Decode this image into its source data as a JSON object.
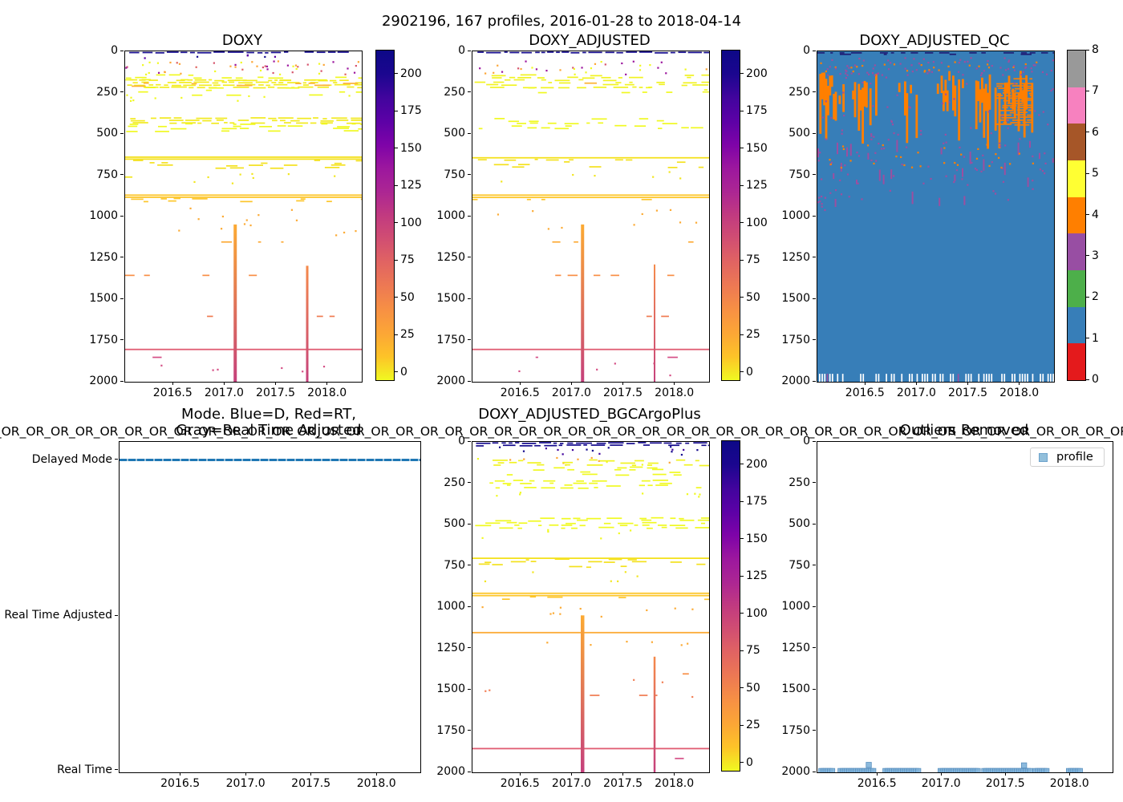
{
  "figure": {
    "suptitle": "2902196, 167 profiles, 2016-01-28 to 2018-04-14"
  },
  "axes": {
    "x_tick_labels": [
      "2016.5",
      "2017.0",
      "2017.5",
      "2018.0"
    ],
    "x_tick_values": [
      2016.5,
      2017.0,
      2017.5,
      2018.0
    ],
    "x_range": [
      2016.03,
      2018.33
    ],
    "depth_tick_labels": [
      "0",
      "250",
      "500",
      "750",
      "1000",
      "1250",
      "1500",
      "1750",
      "2000"
    ],
    "depth_tick_values": [
      0,
      250,
      500,
      750,
      1000,
      1250,
      1500,
      1750,
      2000
    ],
    "depth_range": [
      0,
      2000
    ],
    "y_axis_inverted": true
  },
  "colorbars": {
    "plasma_ticks": [
      "0",
      "25",
      "50",
      "75",
      "100",
      "125",
      "150",
      "175",
      "200"
    ],
    "plasma_tick_values": [
      0,
      25,
      50,
      75,
      100,
      125,
      150,
      175,
      200
    ],
    "plasma_range": [
      -5,
      216
    ],
    "plasma_gradient_bottom_to_top": [
      "#f0f921",
      "#fdc328",
      "#fca636",
      "#f79044",
      "#ed7953",
      "#e16462",
      "#d14e72",
      "#c13a80",
      "#ac2693",
      "#9c179e",
      "#7e03a8",
      "#5c01a6",
      "#41049d",
      "#1b068f",
      "#0d0887"
    ],
    "qc_ticks": [
      "0",
      "1",
      "2",
      "3",
      "4",
      "5",
      "6",
      "7",
      "8"
    ],
    "qc_palette_bottom_to_top": [
      "#e41a1c",
      "#377eb8",
      "#4daf4a",
      "#984ea3",
      "#ff7f00",
      "#ffff33",
      "#a65628",
      "#f781bf",
      "#999999"
    ]
  },
  "colors": {
    "mode_line": "#1f77b4",
    "profile_marker_fill": "#7fb2d9",
    "profile_marker_edge": "#5a90bf",
    "qc_background": "#377eb8",
    "qc_flag4": "#ff7f00",
    "qc_flag3": "#9c4fa0",
    "heat_top_band": "#140a8d",
    "heat_deep_line": "#e05c72"
  },
  "chart_data": [
    {
      "id": "doxy",
      "type": "heatmap",
      "title": "DOXY",
      "colormap": "plasma_r",
      "x_range": [
        2016.03,
        2018.33
      ],
      "depth_range": [
        0,
        2000
      ],
      "value_ticks": [
        0,
        25,
        50,
        75,
        100,
        125,
        150,
        175,
        200
      ],
      "features": [
        {
          "k": "band",
          "d": [
            0,
            13
          ],
          "c": "#140a8d",
          "den": 0.93
        },
        {
          "k": "speckle",
          "d": [
            18,
            42
          ],
          "cs": [
            "#140a8d",
            "#5601a4"
          ],
          "n": 6
        },
        {
          "k": "speckle",
          "d": [
            55,
            135
          ],
          "cs": [
            "#fca636",
            "#e0635f",
            "#9c179e",
            "#f0f921",
            "#d6556d"
          ],
          "n": 50
        },
        {
          "k": "band",
          "d": [
            138,
            168
          ],
          "c": "#f0f921",
          "den": 0.42
        },
        {
          "k": "band",
          "d": [
            168,
            212
          ],
          "c": "#f3ed20",
          "den": 0.88
        },
        {
          "k": "band",
          "d": [
            172,
            205
          ],
          "c": "#fcb130",
          "den": 0.16
        },
        {
          "k": "band",
          "d": [
            212,
            258
          ],
          "c": "#f0f921",
          "den": 0.28
        },
        {
          "k": "speckle",
          "d": [
            258,
            300
          ],
          "cs": [
            "#f0f921"
          ],
          "n": 10
        },
        {
          "k": "band",
          "d": [
            398,
            432
          ],
          "c": "#f2ea1f",
          "den": 0.8
        },
        {
          "k": "band",
          "d": [
            432,
            480
          ],
          "c": "#f0f921",
          "den": 0.42
        },
        {
          "k": "line",
          "d": 636,
          "c": "#f4e11e"
        },
        {
          "k": "line",
          "d": 648,
          "c": "#f4e11e"
        },
        {
          "k": "band",
          "d": [
            655,
            702
          ],
          "c": "#f4e11e",
          "den": 0.26
        },
        {
          "k": "dashrow",
          "d": 757,
          "c": "#f2e61f",
          "den": 0.07
        },
        {
          "k": "speckle",
          "d": [
            720,
            800
          ],
          "cs": [
            "#f2e61f"
          ],
          "n": 8
        },
        {
          "k": "line",
          "d": 866,
          "c": "#fdc62b"
        },
        {
          "k": "line",
          "d": 879,
          "c": "#fdc62b"
        },
        {
          "k": "band",
          "d": [
            886,
            912
          ],
          "c": "#fdc62b",
          "den": 0.3
        },
        {
          "k": "speckle",
          "d": [
            940,
            1110
          ],
          "cs": [
            "#fcab35"
          ],
          "n": 14
        },
        {
          "k": "dashrow",
          "d": 1150,
          "c": "#fcab35",
          "den": 0.17
        },
        {
          "k": "dashrow",
          "d": 1352,
          "c": "#f88f47",
          "den": 0.32
        },
        {
          "k": "dashrow",
          "d": 1600,
          "c": "#f07b52",
          "den": 0.15
        },
        {
          "k": "line",
          "d": 1800,
          "c": "#e05c72"
        },
        {
          "k": "dashrow",
          "d": 1848,
          "c": "#d55086",
          "den": 0.1
        },
        {
          "k": "speckle",
          "d": [
            1880,
            1935
          ],
          "cs": [
            "#d55086"
          ],
          "n": 6
        },
        {
          "k": "vspike",
          "x": 2017.1,
          "d": [
            1048,
            2000
          ],
          "w": 4,
          "c1": "#fcaa33",
          "c2": "#c5407c"
        },
        {
          "k": "vspike",
          "x": 2017.8,
          "d": [
            1298,
            2000
          ],
          "w": 3,
          "c1": "#f58a4a",
          "c2": "#c5407c"
        }
      ]
    },
    {
      "id": "doxy_adjusted",
      "type": "heatmap",
      "title": "DOXY_ADJUSTED",
      "colormap": "plasma_r",
      "x_range": [
        2016.03,
        2018.33
      ],
      "depth_range": [
        0,
        2000
      ],
      "value_ticks": [
        0,
        25,
        50,
        75,
        100,
        125,
        150,
        175,
        200
      ],
      "features": [
        {
          "k": "band",
          "d": [
            0,
            13
          ],
          "c": "#140a8d",
          "den": 0.9
        },
        {
          "k": "speckle",
          "d": [
            55,
            135
          ],
          "cs": [
            "#fca636",
            "#9c179e",
            "#f0f921",
            "#d6556d"
          ],
          "n": 32
        },
        {
          "k": "band",
          "d": [
            138,
            212
          ],
          "c": "#f1f321",
          "den": 0.5,
          "xr": [
            2016.03,
            2017.9
          ]
        },
        {
          "k": "band",
          "d": [
            138,
            212
          ],
          "c": "#f1f321",
          "den": 0.5,
          "xr": [
            2018.05,
            2018.33
          ]
        },
        {
          "k": "band",
          "d": [
            170,
            205
          ],
          "c": "#fcb130",
          "den": 0.1,
          "xr": [
            2016.25,
            2017.6
          ]
        },
        {
          "k": "band",
          "d": [
            212,
            262
          ],
          "c": "#f0f921",
          "den": 0.2
        },
        {
          "k": "band",
          "d": [
            400,
            470
          ],
          "c": "#f0f921",
          "den": 0.38
        },
        {
          "k": "line",
          "d": 640,
          "c": "#f4e11e"
        },
        {
          "k": "band",
          "d": [
            650,
            695
          ],
          "c": "#f4e11e",
          "den": 0.24
        },
        {
          "k": "speckle",
          "d": [
            720,
            800
          ],
          "cs": [
            "#f2e61f"
          ],
          "n": 6
        },
        {
          "k": "line",
          "d": 866,
          "c": "#fdc62b"
        },
        {
          "k": "line",
          "d": 880,
          "c": "#fdc62b"
        },
        {
          "k": "dashrow",
          "d": 893,
          "c": "#fdc62b",
          "den": 0.22
        },
        {
          "k": "speckle",
          "d": [
            940,
            1110
          ],
          "cs": [
            "#fcab35"
          ],
          "n": 10
        },
        {
          "k": "dashrow",
          "d": 1150,
          "c": "#fcab35",
          "den": 0.12
        },
        {
          "k": "dashrow",
          "d": 1352,
          "c": "#f88f47",
          "den": 0.26
        },
        {
          "k": "dashrow",
          "d": 1600,
          "c": "#f07b52",
          "den": 0.12
        },
        {
          "k": "line",
          "d": 1800,
          "c": "#e05c72"
        },
        {
          "k": "dashrow",
          "d": 1848,
          "c": "#d55086",
          "den": 0.08
        },
        {
          "k": "speckle",
          "d": [
            1880,
            1960
          ],
          "cs": [
            "#d55086"
          ],
          "n": 5
        },
        {
          "k": "vspike",
          "x": 2017.1,
          "d": [
            1048,
            2000
          ],
          "w": 4,
          "c1": "#fcaa33",
          "c2": "#c5407c"
        },
        {
          "k": "vspike",
          "x": 2017.8,
          "d": [
            1290,
            2000
          ],
          "w": 2,
          "c1": "#f58a4a",
          "c2": "#c5407c"
        }
      ]
    },
    {
      "id": "doxy_adjusted_qc",
      "type": "heatmap",
      "title": "DOXY_ADJUSTED_QC",
      "colormap": "Set1_discrete_0_to_8",
      "x_range": [
        2016.03,
        2018.33
      ],
      "depth_range": [
        0,
        2000
      ],
      "dominant_flag": 1,
      "flag_colors": {
        "1": "#377eb8",
        "3": "#9c4fa0",
        "4": "#ff7f00"
      },
      "features": [
        {
          "k": "fill",
          "c": "#377eb8"
        },
        {
          "k": "dashrow",
          "d": 5,
          "c": "#1d1d74",
          "den": 0.75
        },
        {
          "k": "dashrow",
          "d": 14,
          "c": "#1d1d74",
          "den": 0.3
        },
        {
          "k": "qcblobs",
          "c": "#ff7f00"
        },
        {
          "k": "band",
          "d": [
            160,
            440
          ],
          "c": "#ff7f00",
          "den": 0.88,
          "xr": [
            2017.76,
            2018.12
          ]
        },
        {
          "k": "speckle",
          "d": [
            60,
            120
          ],
          "cs": [
            "#ff7f00"
          ],
          "n": 25
        },
        {
          "k": "speckle",
          "d": [
            35,
            140
          ],
          "cs": [
            "#9c4fa0"
          ],
          "n": 80
        },
        {
          "k": "speckle",
          "d": [
            140,
            500
          ],
          "cs": [
            "#9c4fa0"
          ],
          "n": 40
        },
        {
          "k": "speckle",
          "d": [
            480,
            900
          ],
          "cs": [
            "#9c4fa0"
          ],
          "n": 70
        },
        {
          "k": "speckle",
          "d": [
            860,
            960
          ],
          "cs": [
            "#9c4fa0"
          ],
          "n": 8,
          "xr": [
            2016.03,
            2016.1
          ]
        },
        {
          "k": "speckle",
          "d": [
            560,
            700
          ],
          "cs": [
            "#ff7f00"
          ],
          "n": 30
        },
        {
          "k": "bottomticks",
          "d": [
            1952,
            2000
          ],
          "c": "#ffffff"
        }
      ]
    },
    {
      "id": "mode",
      "type": "line",
      "title_line1": "Mode. Blue=D, Red=RT,",
      "title_line2": "Gray=Real Time Adjusted",
      "y_categories": [
        "Delayed Mode",
        "Real Time Adjusted",
        "Real Time"
      ],
      "x_range": [
        2016.03,
        2018.33
      ],
      "series": [
        {
          "name": "mode",
          "color": "#1f77b4",
          "style": "dashed",
          "value": "Delayed Mode",
          "x_span": [
            2016.03,
            2018.33
          ]
        }
      ]
    },
    {
      "id": "doxy_adjusted_bgcargoplus",
      "type": "heatmap",
      "title": "DOXY_ADJUSTED_BGCArgoPlus",
      "title_line2": "OR_OR_OR_OR_OR_OR_OR_OR_OR_OR_OR_OR_OR_OR_OR_OR_OR_OR_OR_OR_OR_OR_OR_OR_OR_OR_OR_OR_OR_OR_OR_OR_OR_OR_OR_OR_OR_OR_OR_OR_OR_OR_OR_OR_OR_OR_OR_OR_OR_OR_OR_OR_OR_OR_OR_OR_OR_OR_OR_OR",
      "colormap": "plasma_r",
      "x_range": [
        2016.03,
        2018.33
      ],
      "depth_range": [
        0,
        2000
      ],
      "value_ticks": [
        0,
        25,
        50,
        75,
        100,
        125,
        150,
        175,
        200
      ],
      "features": [
        {
          "k": "band",
          "d": [
            0,
            18
          ],
          "c": "#140a8d",
          "den": 0.82
        },
        {
          "k": "speckle",
          "d": [
            22,
            75
          ],
          "cs": [
            "#140a8d",
            "#41049d"
          ],
          "n": 16
        },
        {
          "k": "speckle",
          "d": [
            90,
            135
          ],
          "cs": [
            "#f0f921",
            "#fca636"
          ],
          "n": 12
        },
        {
          "k": "band",
          "d": [
            105,
            145
          ],
          "c": "#f1f321",
          "den": 0.32
        },
        {
          "k": "band",
          "d": [
            148,
            192
          ],
          "c": "#f0f921",
          "den": 0.28
        },
        {
          "k": "band",
          "d": [
            228,
            286
          ],
          "c": "#f0f921",
          "den": 0.45
        },
        {
          "k": "speckle",
          "d": [
            290,
            330
          ],
          "cs": [
            "#f0f921"
          ],
          "n": 8
        },
        {
          "k": "band",
          "d": [
            455,
            515
          ],
          "c": "#f0f921",
          "den": 0.5
        },
        {
          "k": "speckle",
          "d": [
            520,
            580
          ],
          "cs": [
            "#f0f921"
          ],
          "n": 6
        },
        {
          "k": "line",
          "d": 700,
          "c": "#f4e11e"
        },
        {
          "k": "band",
          "d": [
            705,
            760
          ],
          "c": "#f4e11e",
          "den": 0.3
        },
        {
          "k": "speckle",
          "d": [
            780,
            860
          ],
          "cs": [
            "#f2e61f"
          ],
          "n": 6
        },
        {
          "k": "line",
          "d": 912,
          "c": "#fdc62b"
        },
        {
          "k": "line",
          "d": 926,
          "c": "#fdc62b"
        },
        {
          "k": "band",
          "d": [
            933,
            958
          ],
          "c": "#fdc62b",
          "den": 0.25
        },
        {
          "k": "speckle",
          "d": [
            975,
            1075
          ],
          "cs": [
            "#fcab35"
          ],
          "n": 10
        },
        {
          "k": "line",
          "d": 1150,
          "c": "#fcab35"
        },
        {
          "k": "speckle",
          "d": [
            1190,
            1230
          ],
          "cs": [
            "#fcab35"
          ],
          "n": 6
        },
        {
          "k": "dashrow",
          "d": 1400,
          "c": "#f88f47",
          "den": 0.24
        },
        {
          "k": "speckle",
          "d": [
            1430,
            1540
          ],
          "cs": [
            "#f28057"
          ],
          "n": 5
        },
        {
          "k": "dashrow",
          "d": 1530,
          "c": "#f07b52",
          "den": 0.12
        },
        {
          "k": "line",
          "d": 1852,
          "c": "#e05c72"
        },
        {
          "k": "dashrow",
          "d": 1912,
          "c": "#d55086",
          "den": 0.09
        },
        {
          "k": "vspike",
          "x": 2017.1,
          "d": [
            1050,
            2000
          ],
          "w": 4.5,
          "c1": "#fcaa33",
          "c2": "#c5407c"
        },
        {
          "k": "vspike",
          "x": 2017.8,
          "d": [
            1300,
            2000
          ],
          "w": 2.5,
          "c1": "#f58a4a",
          "c2": "#c5407c"
        }
      ]
    },
    {
      "id": "outliers_removed",
      "type": "scatter",
      "title": "Outliers Removed",
      "legend": "profile",
      "marker": "square",
      "x_range": [
        2016.03,
        2018.33
      ],
      "depth_range": [
        0,
        2000
      ],
      "cluster_depth": 1992,
      "step": 0.017,
      "clusters": [
        [
          2016.06,
          2016.16
        ],
        [
          2016.21,
          2016.47
        ],
        [
          2016.56,
          2016.82
        ],
        [
          2016.99,
          2017.29
        ],
        [
          2017.33,
          2017.69
        ],
        [
          2017.73,
          2017.82
        ],
        [
          2017.99,
          2018.08
        ]
      ],
      "raised_points": [
        [
          2016.43,
          1955
        ],
        [
          2017.64,
          1958
        ]
      ]
    }
  ]
}
